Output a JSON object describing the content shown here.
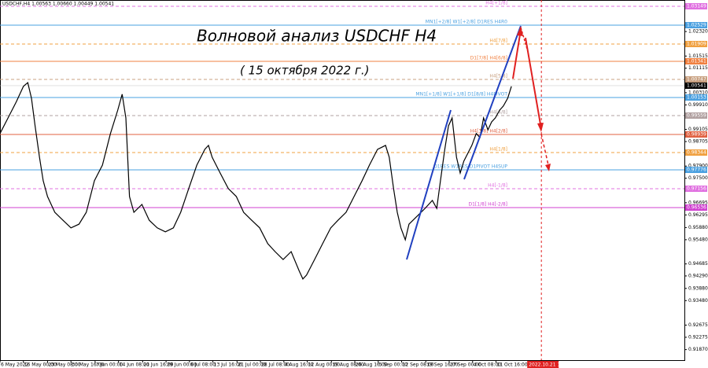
{
  "chart_data": {
    "type": "line",
    "header": "USDCHF,H4  1.00563 1.00660 1.00449 1.00541",
    "title": "Волновой анализ USDCHF H4",
    "subtitle": "( 15 октября 2022 г.)",
    "xlim": [
      0,
      935.5
    ],
    "ylim": [
      0.91524,
      1.03356
    ],
    "xticks": [
      {
        "value": 0,
        "label": "6 May 2022"
      },
      {
        "value": 32,
        "label": "16 May 00:00"
      },
      {
        "value": 65,
        "label": "23 May 08:00"
      },
      {
        "value": 97,
        "label": "30 May 16:00"
      },
      {
        "value": 130,
        "label": "7 Jun 00:00"
      },
      {
        "value": 162,
        "label": "14 Jun 08:00"
      },
      {
        "value": 195,
        "label": "21 Jun 16:00"
      },
      {
        "value": 227,
        "label": "29 Jun 00:00"
      },
      {
        "value": 259,
        "label": "6 Jul 08:00"
      },
      {
        "value": 291,
        "label": "13 Jul 16:00"
      },
      {
        "value": 324,
        "label": "21 Jul 00:00"
      },
      {
        "value": 356,
        "label": "28 Jul 08:00"
      },
      {
        "value": 388,
        "label": "4 Aug 16:00"
      },
      {
        "value": 420,
        "label": "12 Aug 00:00"
      },
      {
        "value": 453,
        "label": "19 Aug 08:00"
      },
      {
        "value": 485,
        "label": "26 Aug 16:00"
      },
      {
        "value": 517,
        "label": "5 Sep 00:00"
      },
      {
        "value": 549,
        "label": "12 Sep 08:00"
      },
      {
        "value": 582,
        "label": "19 Sep 16:00"
      },
      {
        "value": 614,
        "label": "27 Sep 00:00"
      },
      {
        "value": 646,
        "label": "4 Oct 08:00"
      },
      {
        "value": 678,
        "label": "11 Oct 16:00"
      }
    ],
    "yticks": [
      {
        "value": 1.0232,
        "label": "1.02320"
      },
      {
        "value": 1.01515,
        "label": "1.01515"
      },
      {
        "value": 1.01115,
        "label": "1.01115"
      },
      {
        "value": 1.0031,
        "label": "1.00310"
      },
      {
        "value": 0.9991,
        "label": "0.99910"
      },
      {
        "value": 0.99105,
        "label": "0.99105"
      },
      {
        "value": 0.98705,
        "label": "0.98705"
      },
      {
        "value": 0.979,
        "label": "0.97900"
      },
      {
        "value": 0.975,
        "label": "0.97500"
      },
      {
        "value": 0.96695,
        "label": "0.96695"
      },
      {
        "value": 0.96295,
        "label": "0.96295"
      },
      {
        "value": 0.9588,
        "label": "0.95880"
      },
      {
        "value": 0.9548,
        "label": "0.95480"
      },
      {
        "value": 0.94685,
        "label": "0.94685"
      },
      {
        "value": 0.9429,
        "label": "0.94290"
      },
      {
        "value": 0.9388,
        "label": "0.93880"
      },
      {
        "value": 0.9348,
        "label": "0.93480"
      },
      {
        "value": 0.92675,
        "label": "0.92675"
      },
      {
        "value": 0.92275,
        "label": "0.92275"
      },
      {
        "value": 0.9187,
        "label": "0.91870"
      }
    ],
    "series": [
      {
        "name": "USDCHF",
        "color": "#000000",
        "x": [
          0,
          11,
          22,
          32,
          38,
          43,
          48,
          54,
          59,
          65,
          75,
          86,
          97,
          108,
          118,
          129,
          140,
          151,
          161,
          167,
          172,
          177,
          183,
          194,
          204,
          215,
          226,
          237,
          247,
          258,
          269,
          280,
          285,
          290,
          301,
          312,
          323,
          333,
          344,
          355,
          366,
          376,
          387,
          398,
          409,
          414,
          419,
          430,
          441,
          452,
          462,
          473,
          484,
          495,
          505,
          516,
          527,
          532,
          538,
          543,
          548,
          554,
          559,
          570,
          581,
          591,
          597,
          602,
          608,
          613,
          618,
          624,
          629,
          634,
          645,
          651,
          656,
          661,
          667,
          672,
          677,
          683,
          688,
          694,
          699
        ],
        "values": [
          0.9897,
          0.9948,
          1.0,
          1.0052,
          1.0064,
          1.0013,
          0.9922,
          0.9819,
          0.9742,
          0.969,
          0.9638,
          0.9612,
          0.9587,
          0.9599,
          0.9638,
          0.9742,
          0.9793,
          0.9897,
          0.9974,
          1.0026,
          0.9948,
          0.969,
          0.9638,
          0.9664,
          0.9612,
          0.9587,
          0.9574,
          0.9587,
          0.9638,
          0.9716,
          0.9793,
          0.9845,
          0.9858,
          0.9819,
          0.9767,
          0.9716,
          0.969,
          0.9638,
          0.9612,
          0.9587,
          0.9535,
          0.9509,
          0.9483,
          0.9509,
          0.9445,
          0.9419,
          0.9432,
          0.9483,
          0.9535,
          0.9587,
          0.9612,
          0.9638,
          0.969,
          0.9742,
          0.9793,
          0.9845,
          0.9858,
          0.9819,
          0.9716,
          0.9638,
          0.9587,
          0.9548,
          0.9599,
          0.9625,
          0.9651,
          0.9677,
          0.9651,
          0.9742,
          0.9845,
          0.9922,
          0.9948,
          0.9819,
          0.9767,
          0.9806,
          0.9858,
          0.9897,
          0.9884,
          0.9948,
          0.9909,
          0.9935,
          0.9948,
          0.9974,
          0.9987,
          1.0013,
          1.0052
        ]
      }
    ],
    "current_price": 1.00541,
    "current_price_color": "#000000",
    "forecast_line": {
      "x": 740,
      "label": "2022.10.21 10:00",
      "color": "#e02020"
    },
    "levels": [
      {
        "name": "H4[+1/8]",
        "value": 1.03149,
        "color": "#e070e0",
        "style": "dashed"
      },
      {
        "name": "MN1[+2/8] W1[+2/8] D1RES H4R0",
        "value": 1.02529,
        "color": "#4aa0e0",
        "style": "solid"
      },
      {
        "name": "H4[7/8]",
        "value": 1.01909,
        "color": "#f0a040",
        "style": "dashed"
      },
      {
        "name": "D1[7/8] H4[6/8]",
        "value": 1.01341,
        "color": "#f08040",
        "style": "solid"
      },
      {
        "name": "H4[5/8]",
        "value": 1.00747,
        "color": "#c8a080",
        "style": "dashed"
      },
      {
        "name": "MN1[+1/8] W1[+1/8] D1[8/8] H4PIVOT",
        "value": 1.00153,
        "color": "#4aa0e0",
        "style": "solid"
      },
      {
        "name": "H4[4/8]",
        "value": 0.99559,
        "color": "#b0a0a0",
        "style": "dashed"
      },
      {
        "name": "H4[3/8] H4[2/8]",
        "value": 0.98939,
        "color": "#e06040",
        "style": "solid"
      },
      {
        "name": "H4[1/8]",
        "value": 0.98344,
        "color": "#f0a040",
        "style": "dashed"
      },
      {
        "name": "D1RES W1RES D1PIVOT H4SUP",
        "value": 0.97776,
        "color": "#4aa0e0",
        "style": "solid"
      },
      {
        "name": "H4[-1/8]",
        "value": 0.97156,
        "color": "#e070e0",
        "style": "dashed"
      },
      {
        "name": "D1[1/8] H4[-2/8]",
        "value": 0.96536,
        "color": "#d040d0",
        "style": "solid"
      }
    ]
  }
}
